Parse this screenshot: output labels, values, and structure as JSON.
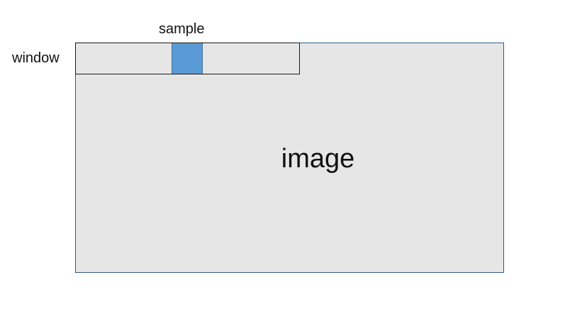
{
  "diagram": {
    "image_label": "image",
    "window_label": "window",
    "sample_label": "sample"
  },
  "colors": {
    "image_fill": "#e6e6e6",
    "image_border": "#2e5c8a",
    "window_border": "#1a1a1a",
    "sample_fill": "#5b9bd5"
  }
}
